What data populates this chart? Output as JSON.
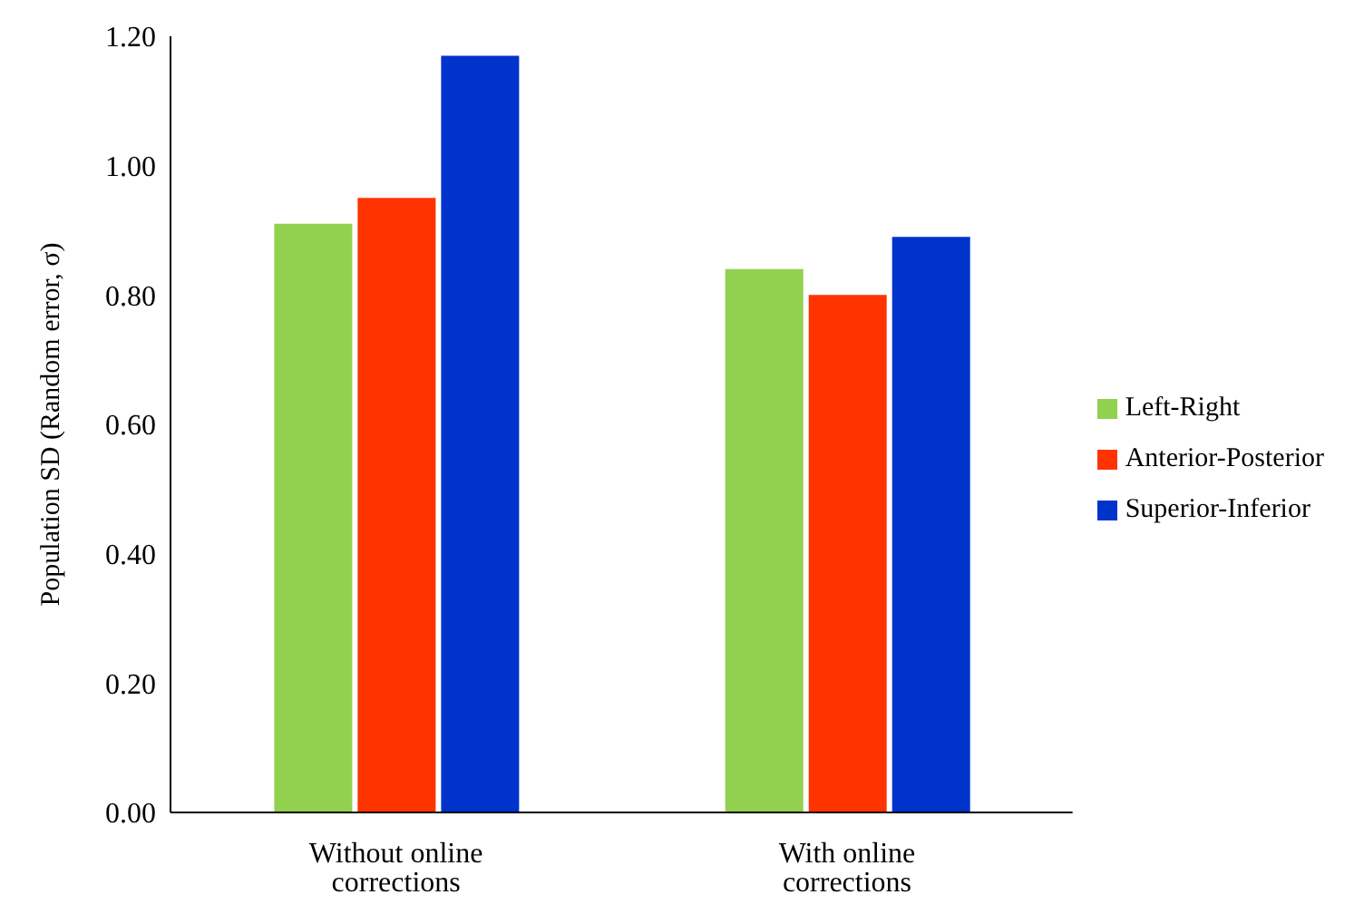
{
  "chart_data": {
    "type": "bar",
    "ylabel": "Population SD (Random error, σ)",
    "categories": [
      "Without online corrections",
      "With online corrections"
    ],
    "series": [
      {
        "name": "Left-Right",
        "color": "#92d050",
        "values": [
          0.91,
          0.84
        ]
      },
      {
        "name": "Anterior-Posterior",
        "color": "#ff3300",
        "values": [
          0.95,
          0.8
        ]
      },
      {
        "name": "Superior-Inferior",
        "color": "#0033cc",
        "values": [
          1.17,
          0.89
        ]
      }
    ],
    "ylim": [
      0,
      1.2
    ],
    "yticks": [
      {
        "value": 0,
        "label": "0.00"
      },
      {
        "value": 0.2,
        "label": "0.20"
      },
      {
        "value": 0.4,
        "label": "0.40"
      },
      {
        "value": 0.6,
        "label": "0.60"
      },
      {
        "value": 0.8,
        "label": "0.80"
      },
      {
        "value": 1,
        "label": "1.00"
      },
      {
        "value": 1.2,
        "label": "1.20"
      }
    ],
    "grid": false,
    "legend": "right"
  }
}
